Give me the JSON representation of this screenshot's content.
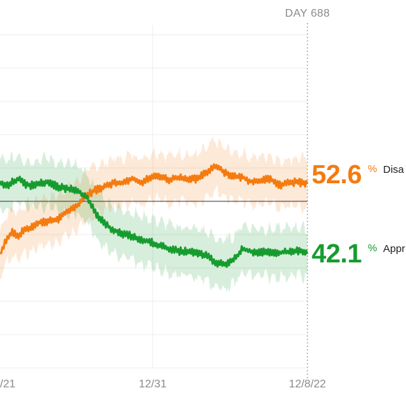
{
  "header": {
    "day_label": "DAY 688"
  },
  "chart_data": {
    "type": "line",
    "x_ticks": [
      "/21",
      "12/31",
      "12/8/22"
    ],
    "ylim": [
      25,
      75
    ],
    "grid": true,
    "colors": {
      "disapprove": "#f47b0f",
      "approve": "#169c2e",
      "reference": "#333333"
    },
    "series": [
      {
        "name": "Disa",
        "color": "#f47b0f",
        "final_value_label": "52.6",
        "final_value": 52.6,
        "x": [
          0.0,
          0.02,
          0.04,
          0.06,
          0.08,
          0.1,
          0.13,
          0.16,
          0.19,
          0.22,
          0.25,
          0.28,
          0.31,
          0.34,
          0.37,
          0.4,
          0.43,
          0.46,
          0.49,
          0.52,
          0.55,
          0.58,
          0.61,
          0.64,
          0.67,
          0.7,
          0.73,
          0.76,
          0.79,
          0.82,
          0.85,
          0.88,
          0.91,
          0.94,
          0.97,
          1.0
        ],
        "values": [
          42.0,
          44.3,
          45.3,
          44.8,
          45.8,
          46.0,
          46.9,
          47.0,
          47.4,
          48.5,
          49.3,
          50.8,
          51.7,
          52.2,
          52.8,
          52.8,
          53.5,
          52.8,
          53.6,
          53.8,
          53.2,
          53.6,
          53.4,
          53.3,
          54.3,
          55.4,
          54.4,
          53.7,
          53.6,
          52.9,
          53.2,
          53.3,
          52.4,
          52.8,
          52.9,
          52.6
        ]
      },
      {
        "name": "Appr",
        "color": "#169c2e",
        "final_value_label": "42.1",
        "final_value": 42.1,
        "x": [
          0.0,
          0.02,
          0.04,
          0.06,
          0.08,
          0.1,
          0.13,
          0.16,
          0.19,
          0.22,
          0.25,
          0.28,
          0.31,
          0.34,
          0.37,
          0.4,
          0.43,
          0.46,
          0.49,
          0.52,
          0.55,
          0.58,
          0.61,
          0.64,
          0.67,
          0.7,
          0.73,
          0.76,
          0.79,
          0.82,
          0.85,
          0.88,
          0.91,
          0.94,
          0.97,
          1.0
        ],
        "values": [
          52.8,
          52.3,
          52.9,
          53.4,
          52.6,
          52.4,
          52.7,
          52.9,
          52.1,
          51.9,
          51.8,
          50.6,
          48.3,
          46.6,
          45.7,
          45.1,
          44.8,
          44.1,
          43.9,
          43.3,
          42.9,
          42.5,
          42.5,
          42.2,
          41.9,
          40.8,
          40.5,
          41.2,
          42.9,
          42.4,
          42.4,
          42.2,
          42.3,
          42.4,
          42.6,
          42.1
        ]
      }
    ],
    "reference_value": 50
  }
}
